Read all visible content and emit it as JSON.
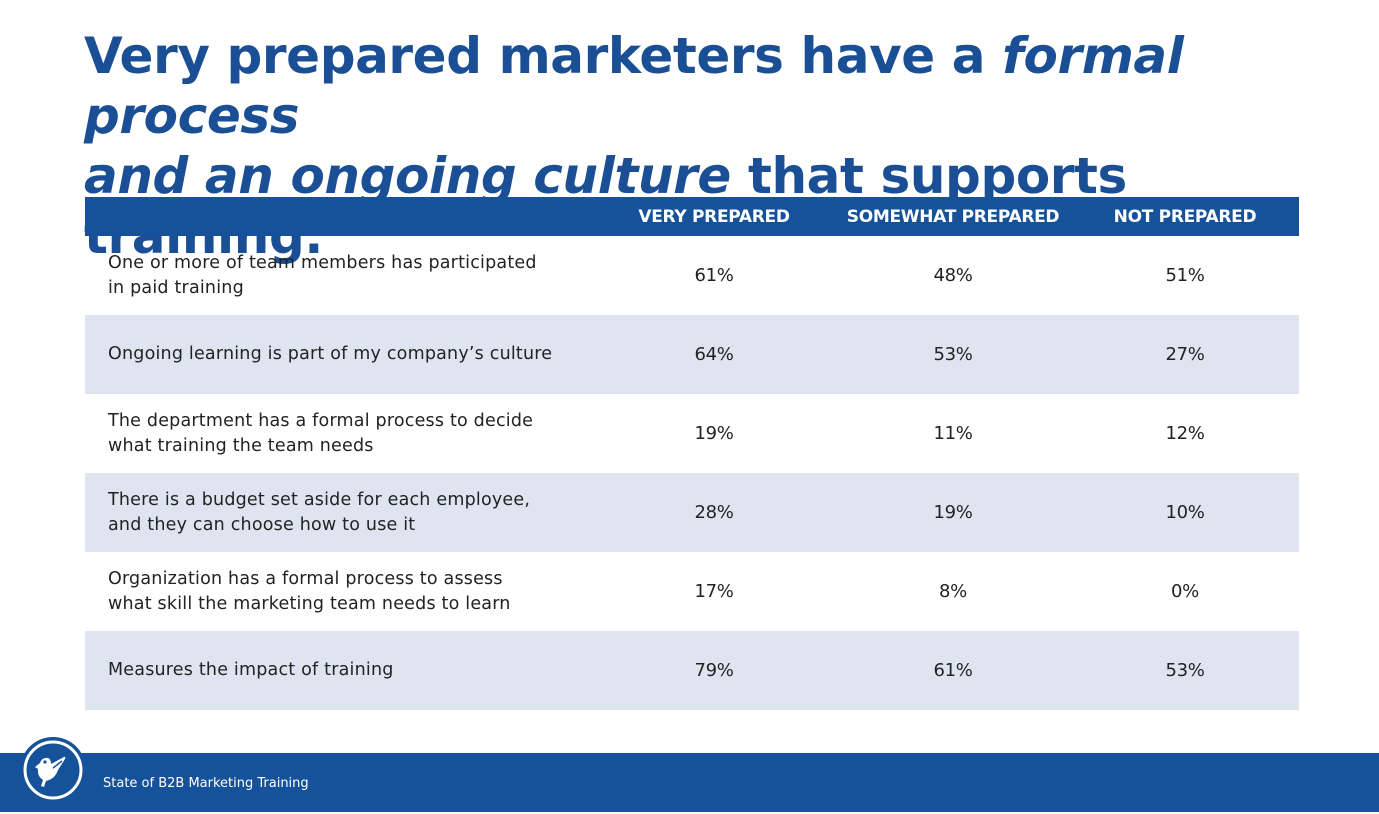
{
  "title": {
    "part1": "Very prepared marketers have a ",
    "part2": "formal process",
    "part3": "and an ongoing culture",
    "part4": " that supports training."
  },
  "table": {
    "columns": [
      "VERY PREPARED",
      "SOMEWHAT PREPARED",
      "NOT PREPARED"
    ],
    "rows": [
      {
        "label_line1": "One or more of team members has participated",
        "label_line2": "in paid training",
        "values": [
          "61%",
          "48%",
          "51%"
        ]
      },
      {
        "label_line1": "Ongoing learning is part of my company’s culture",
        "label_line2": "",
        "values": [
          "64%",
          "53%",
          "27%"
        ]
      },
      {
        "label_line1": "The department has a formal process to decide",
        "label_line2": "what training the team needs",
        "values": [
          "19%",
          "11%",
          "12%"
        ]
      },
      {
        "label_line1": "There is a budget set aside for each employee,",
        "label_line2": "and they can choose how to use it",
        "values": [
          "28%",
          "19%",
          "10%"
        ]
      },
      {
        "label_line1": "Organization has a formal process to assess",
        "label_line2": "what skill the marketing team needs to learn",
        "values": [
          "17%",
          "8%",
          "0%"
        ]
      },
      {
        "label_line1": "Measures the impact of training",
        "label_line2": "",
        "values": [
          "79%",
          "61%",
          "53%"
        ]
      }
    ]
  },
  "footer": {
    "text": "State of B2B Marketing Training",
    "logo_icon": "bird-logo-icon"
  },
  "colors": {
    "brand_blue": "#16529a",
    "title_blue": "#1a4f96",
    "row_shade": "#dfe5f0"
  }
}
